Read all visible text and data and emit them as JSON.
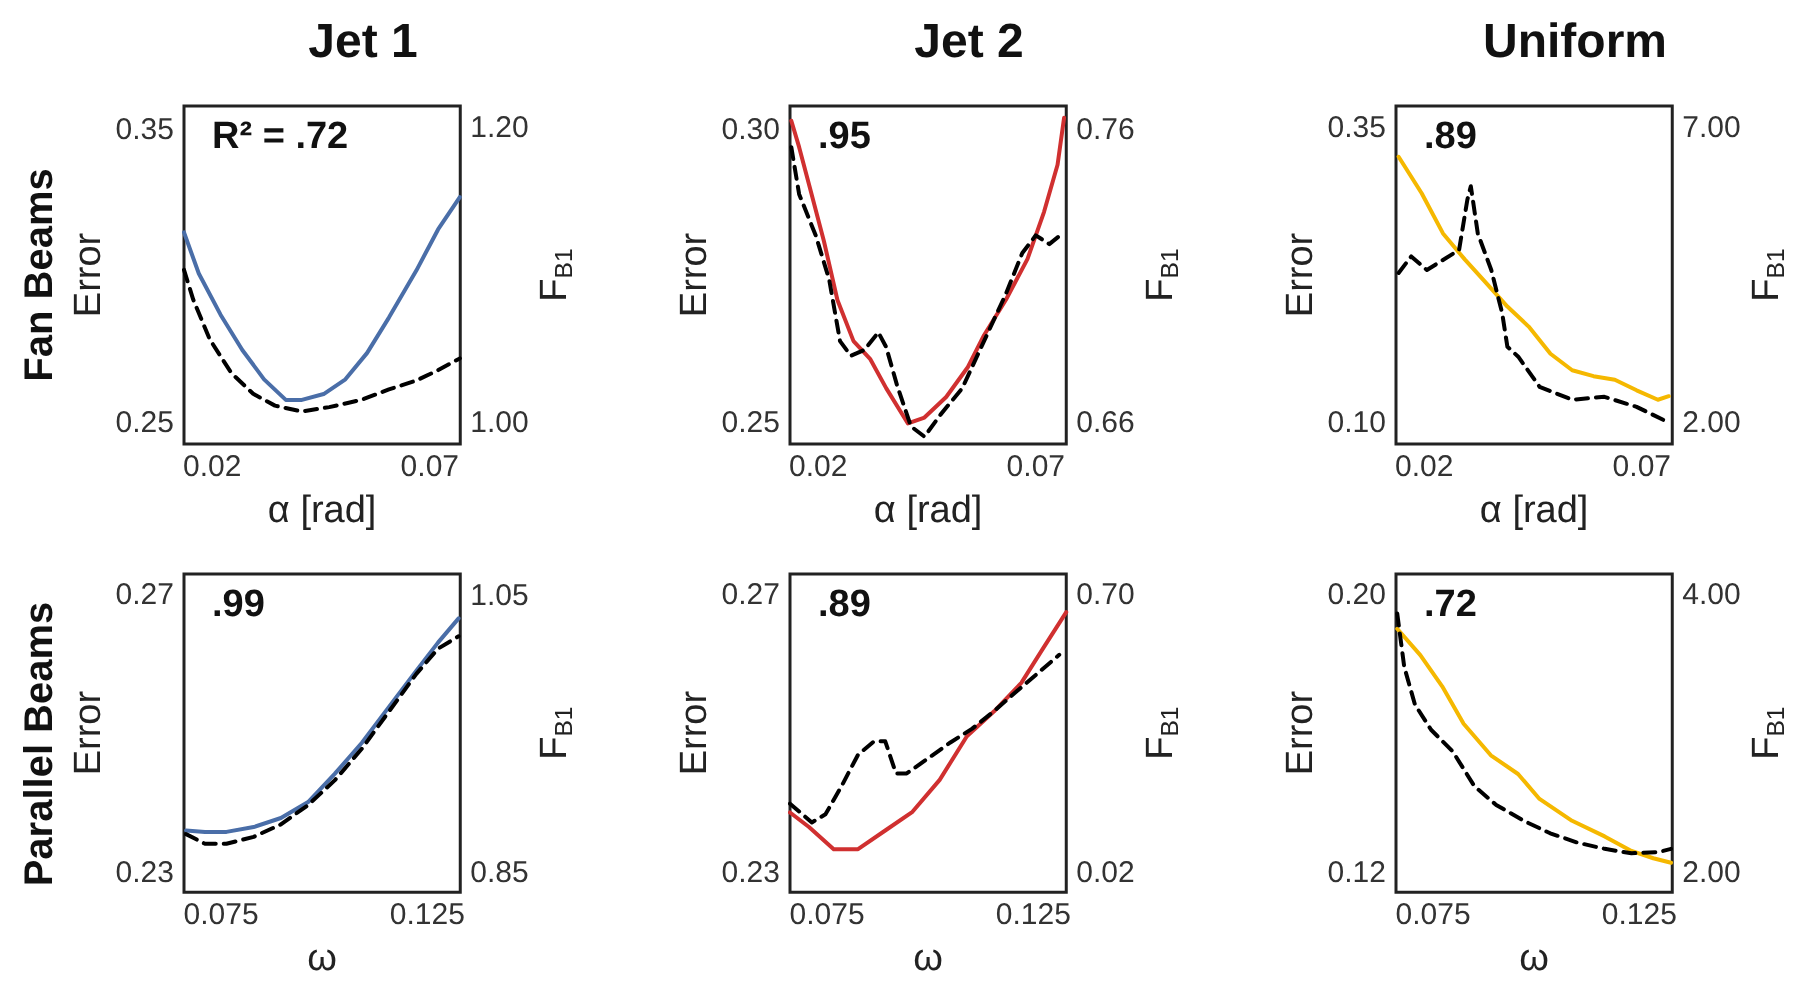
{
  "chart_data": [
    {
      "type": "line",
      "title": "Jet 1",
      "xlabel": "α [rad]",
      "ylabel": "Error",
      "y2label": "F$_{B1}$",
      "annotations": [
        "R² = .72",
        "Fan Beams"
      ],
      "xlim": [
        0.0135,
        0.077
      ],
      "xticks": [
        0.02,
        0.07
      ],
      "ylim": [
        0.243,
        0.358
      ],
      "yticks": [
        0.25,
        0.35
      ],
      "y2lim": [
        0.986,
        1.215
      ],
      "y2ticks": [
        {
          "value": 1.0,
          "label": "1.00"
        },
        {
          "value": 1.2,
          "label": "1.20"
        }
      ],
      "grid": false,
      "series": [
        {
          "color": "#4a6ea8",
          "line_style": "solid",
          "x": [
            0.0135,
            0.0169,
            0.0219,
            0.0269,
            0.0319,
            0.0369,
            0.0406,
            0.0456,
            0.0506,
            0.0556,
            0.0606,
            0.0669,
            0.0719,
            0.0769
          ],
          "values": [
            0.315,
            0.301,
            0.287,
            0.275,
            0.265,
            0.258,
            0.258,
            0.26,
            0.265,
            0.274,
            0.286,
            0.302,
            0.316,
            0.327
          ]
        },
        {
          "color": "#000000",
          "line_style": "dashed",
          "axis": "y2",
          "x": [
            0.0135,
            0.0156,
            0.0194,
            0.0244,
            0.0294,
            0.0344,
            0.0406,
            0.0469,
            0.0544,
            0.0606,
            0.0669,
            0.0719,
            0.0769
          ],
          "values": [
            1.104,
            1.084,
            1.057,
            1.034,
            1.02,
            1.012,
            1.008,
            1.011,
            1.016,
            1.023,
            1.029,
            1.036,
            1.044
          ]
        }
      ]
    },
    {
      "type": "line",
      "title": "Jet 2",
      "xlabel": "α [rad]",
      "ylabel": "Error",
      "y2label": "F$_{B1}$",
      "annotations": [
        ".95"
      ],
      "xlim": [
        0.0135,
        0.077
      ],
      "xticks": [
        0.02,
        0.07
      ],
      "ylim": [
        0.2465,
        0.304
      ],
      "yticks": [
        0.25,
        {
          "value": 0.3,
          "label": "0.30"
        }
      ],
      "y2lim": [
        0.653,
        0.768
      ],
      "y2ticks": [
        0.66,
        0.76
      ],
      "grid": false,
      "series": [
        {
          "color": "#d03030",
          "line_style": "solid",
          "x": [
            0.0138,
            0.0156,
            0.0181,
            0.0213,
            0.0244,
            0.0281,
            0.0319,
            0.0356,
            0.0406,
            0.0444,
            0.0494,
            0.0544,
            0.0581,
            0.0631,
            0.0681,
            0.0719,
            0.075,
            0.0765
          ],
          "values": [
            0.3015,
            0.297,
            0.29,
            0.281,
            0.271,
            0.264,
            0.261,
            0.256,
            0.25,
            0.251,
            0.2545,
            0.2596,
            0.265,
            0.271,
            0.278,
            0.286,
            0.294,
            0.302
          ]
        },
        {
          "color": "#000000",
          "line_style": "dashed",
          "axis": "y2",
          "x": [
            0.0138,
            0.0156,
            0.0194,
            0.0225,
            0.025,
            0.0275,
            0.0306,
            0.0338,
            0.0356,
            0.0381,
            0.0413,
            0.0444,
            0.0481,
            0.0531,
            0.0581,
            0.0631,
            0.0669,
            0.07,
            0.0731,
            0.0756
          ],
          "values": [
            0.754,
            0.738,
            0.724,
            0.709,
            0.688,
            0.683,
            0.685,
            0.691,
            0.686,
            0.673,
            0.659,
            0.6555,
            0.663,
            0.672,
            0.688,
            0.704,
            0.718,
            0.724,
            0.721,
            0.724
          ]
        }
      ]
    },
    {
      "type": "line",
      "title": "Uniform",
      "xlabel": "α [rad]",
      "ylabel": "Error",
      "y2label": "F$_{B1}$",
      "annotations": [
        ".89"
      ],
      "xlim": [
        0.0135,
        0.077
      ],
      "xticks": [
        0.02,
        0.07
      ],
      "ylim": [
        0.0825,
        0.369
      ],
      "yticks": [
        {
          "value": 0.1,
          "label": "0.10"
        },
        0.35
      ],
      "y2lim": [
        1.65,
        7.38
      ],
      "y2ticks": [
        {
          "value": 2,
          "label": "2.00"
        },
        {
          "value": 7,
          "label": "7.00"
        }
      ],
      "grid": false,
      "series": [
        {
          "color": "#f5b800",
          "line_style": "solid",
          "x": [
            0.0141,
            0.0194,
            0.0243,
            0.0293,
            0.0342,
            0.0391,
            0.044,
            0.049,
            0.054,
            0.0589,
            0.0638,
            0.0688,
            0.0737,
            0.0762
          ],
          "values": [
            0.326,
            0.295,
            0.261,
            0.239,
            0.219,
            0.199,
            0.182,
            0.159,
            0.145,
            0.14,
            0.137,
            0.128,
            0.12,
            0.123
          ]
        },
        {
          "color": "#000000",
          "line_style": "dashed",
          "axis": "y2",
          "x": [
            0.0141,
            0.017,
            0.0206,
            0.0243,
            0.028,
            0.0299,
            0.0307,
            0.0323,
            0.0354,
            0.0379,
            0.0391,
            0.0416,
            0.0465,
            0.054,
            0.0614,
            0.0688,
            0.0749
          ],
          "values": [
            4.55,
            4.83,
            4.6,
            4.77,
            4.94,
            5.79,
            6.02,
            5.22,
            4.6,
            3.87,
            3.3,
            3.13,
            2.62,
            2.4,
            2.45,
            2.28,
            2.06
          ]
        }
      ]
    },
    {
      "type": "line",
      "xlabel": "ω",
      "ylabel": "Error",
      "y2label": "F$_{B1}$",
      "annotations": [
        ".99",
        "Parallel Beams"
      ],
      "xlim": [
        0.066,
        0.133
      ],
      "xticks": [
        0.075,
        0.125
      ],
      "ylim": [
        0.2272,
        0.2731
      ],
      "yticks": [
        0.23,
        0.27
      ],
      "y2lim": [
        0.836,
        1.066
      ],
      "y2ticks": [
        0.85,
        1.05
      ],
      "grid": false,
      "series": [
        {
          "color": "#4a6ea8",
          "line_style": "solid",
          "x": [
            0.0665,
            0.0711,
            0.0763,
            0.0829,
            0.0895,
            0.0961,
            0.1026,
            0.1092,
            0.1158,
            0.1224,
            0.1276,
            0.1326
          ],
          "values": [
            0.2361,
            0.2359,
            0.2359,
            0.2366,
            0.2379,
            0.2402,
            0.2443,
            0.2488,
            0.254,
            0.2592,
            0.2632,
            0.2667
          ]
        },
        {
          "color": "#000000",
          "line_style": "dashed",
          "axis": "y2",
          "x": [
            0.0665,
            0.0711,
            0.0763,
            0.0829,
            0.0895,
            0.0961,
            0.1026,
            0.1092,
            0.1158,
            0.1224,
            0.1276,
            0.1326
          ],
          "values": [
            0.878,
            0.871,
            0.871,
            0.876,
            0.885,
            0.899,
            0.917,
            0.94,
            0.967,
            0.994,
            1.012,
            1.021
          ]
        }
      ]
    },
    {
      "type": "line",
      "xlabel": "ω",
      "ylabel": "Error",
      "y2label": "F$_{B1}$",
      "annotations": [
        ".89"
      ],
      "xlim": [
        0.066,
        0.133
      ],
      "xticks": [
        0.075,
        0.125
      ],
      "ylim": [
        0.2272,
        0.2731
      ],
      "yticks": [
        0.23,
        0.27
      ],
      "y2lim": [
        -0.028,
        0.752
      ],
      "y2ticks": [
        0.02,
        {
          "value": 0.7,
          "label": "0.70"
        }
      ],
      "grid": false,
      "series": [
        {
          "color": "#d03030",
          "line_style": "solid",
          "x": [
            0.066,
            0.0706,
            0.0766,
            0.0825,
            0.0891,
            0.0957,
            0.1023,
            0.1089,
            0.1155,
            0.1221,
            0.1273,
            0.133
          ],
          "values": [
            0.2387,
            0.2366,
            0.2334,
            0.2334,
            0.2361,
            0.2388,
            0.2434,
            0.2497,
            0.2533,
            0.2574,
            0.2623,
            0.2676
          ]
        },
        {
          "color": "#000000",
          "line_style": "dashed",
          "axis": "y2",
          "x": [
            0.066,
            0.0713,
            0.0746,
            0.0785,
            0.0825,
            0.0864,
            0.0891,
            0.0917,
            0.0943,
            0.0996,
            0.1049,
            0.1102,
            0.1155,
            0.1207,
            0.126,
            0.1313
          ],
          "values": [
            0.189,
            0.143,
            0.163,
            0.232,
            0.309,
            0.342,
            0.342,
            0.263,
            0.263,
            0.301,
            0.339,
            0.373,
            0.416,
            0.462,
            0.508,
            0.554
          ]
        }
      ]
    },
    {
      "type": "line",
      "xlabel": "ω",
      "ylabel": "Error",
      "y2label": "F$_{B1}$",
      "annotations": [
        ".72"
      ],
      "xlim": [
        0.066,
        0.133
      ],
      "xticks": [
        0.075,
        0.125
      ],
      "ylim": [
        0.1144,
        0.2062
      ],
      "yticks": [
        0.12,
        {
          "value": 0.2,
          "label": "0.20"
        }
      ],
      "y2lim": [
        1.86,
        4.15
      ],
      "y2ticks": [
        {
          "value": 2,
          "label": "2.00"
        },
        {
          "value": 4,
          "label": "4.00"
        }
      ],
      "grid": false,
      "series": [
        {
          "color": "#f5b800",
          "line_style": "solid",
          "x": [
            0.0663,
            0.0719,
            0.0772,
            0.0824,
            0.089,
            0.0956,
            0.1008,
            0.1087,
            0.1166,
            0.1231,
            0.1284,
            0.1327
          ],
          "values": [
            0.1904,
            0.1828,
            0.1738,
            0.163,
            0.1539,
            0.1485,
            0.1413,
            0.135,
            0.1305,
            0.1263,
            0.1242,
            0.1229
          ]
        },
        {
          "color": "#000000",
          "line_style": "dashed",
          "axis": "y2",
          "x": [
            0.0663,
            0.068,
            0.0706,
            0.0745,
            0.0798,
            0.085,
            0.0903,
            0.0969,
            0.1034,
            0.11,
            0.1166,
            0.1231,
            0.1297,
            0.1327
          ],
          "values": [
            3.865,
            3.481,
            3.21,
            3.029,
            2.871,
            2.623,
            2.488,
            2.375,
            2.284,
            2.217,
            2.172,
            2.14,
            2.149,
            2.172
          ]
        }
      ]
    }
  ]
}
